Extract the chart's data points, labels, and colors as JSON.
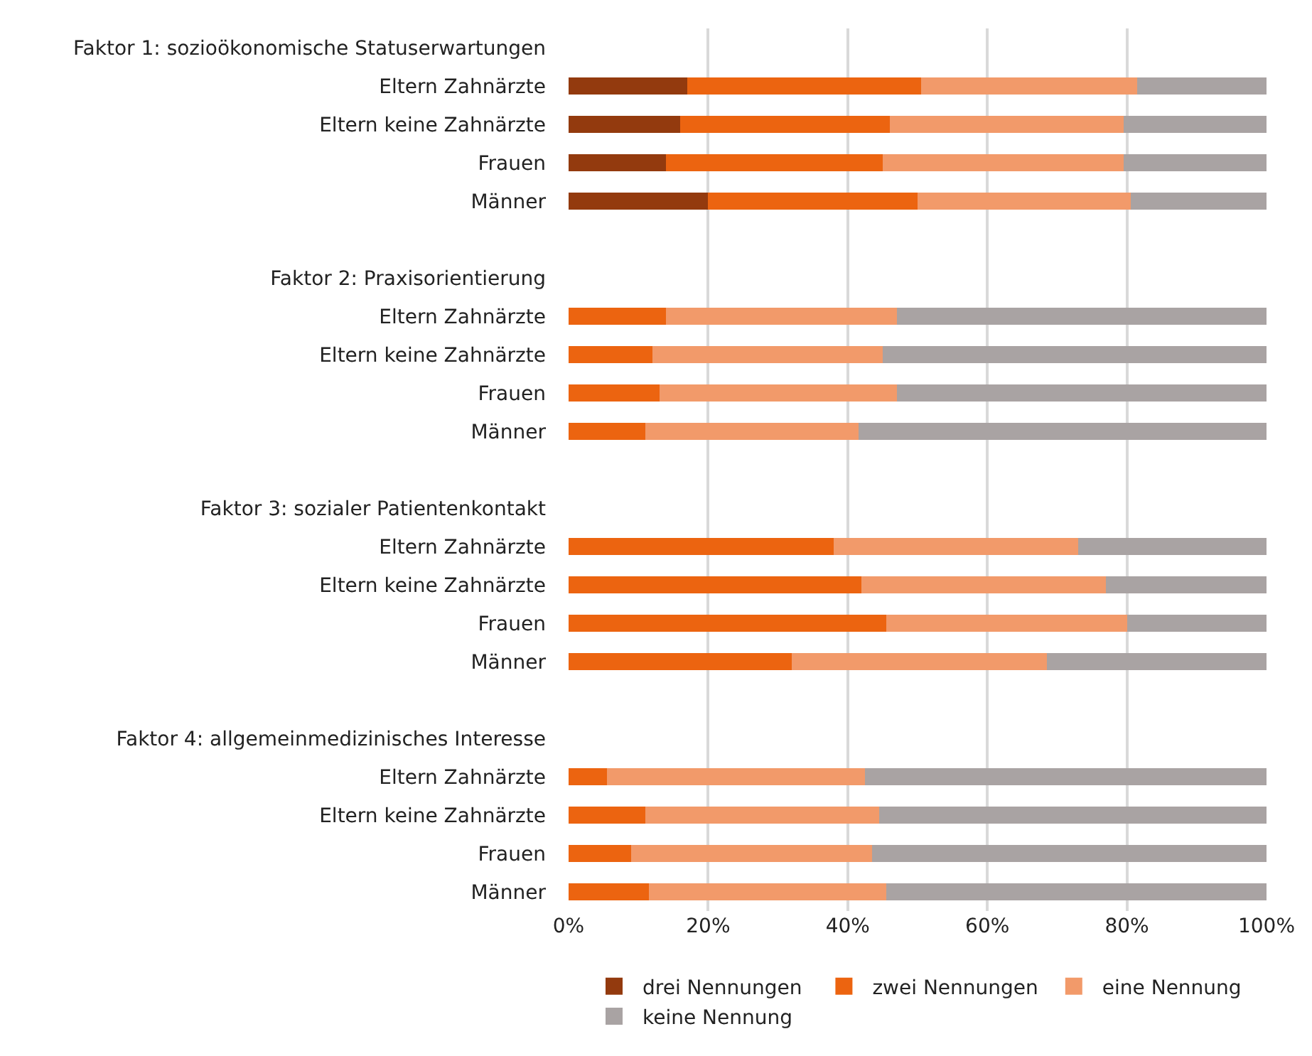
{
  "chart_data": {
    "type": "bar",
    "orientation": "horizontal",
    "stacked": true,
    "categories": [
      "Faktor 1: sozioökonomische Statuserwartungen",
      "Eltern Zahnärzte",
      "Eltern keine Zahnärzte",
      "Frauen",
      "Männer",
      null,
      "Faktor 2: Praxisorientierung",
      "Eltern Zahnärzte",
      "Eltern keine Zahnärzte",
      "Frauen",
      "Männer",
      null,
      "Faktor 3: sozialer Patientenkontakt",
      "Eltern Zahnärzte",
      "Eltern keine Zahnärzte",
      "Frauen",
      "Männer",
      null,
      "Faktor 4: allgemeinmedizinisches Interesse",
      "Eltern Zahnärzte",
      "Eltern keine Zahnärzte",
      "Frauen",
      "Männer"
    ],
    "series": [
      {
        "name": "drei Nennungen",
        "color": "#933a0e",
        "values": [
          null,
          17,
          16,
          14,
          20,
          null,
          null,
          null,
          null,
          null,
          null,
          null,
          null,
          null,
          null,
          null,
          null,
          null,
          null,
          null,
          null,
          null,
          null
        ]
      },
      {
        "name": "zwei Nennungen",
        "color": "#ec6410",
        "values": [
          null,
          33.5,
          30,
          31,
          30,
          null,
          null,
          14,
          12,
          13,
          11,
          null,
          null,
          38,
          42,
          45.5,
          32,
          null,
          null,
          5.5,
          11,
          9,
          11.5
        ]
      },
      {
        "name": "eine Nennung",
        "color": "#f29a6a",
        "values": [
          null,
          31,
          33.5,
          34.5,
          30.5,
          null,
          null,
          33,
          33,
          34,
          30.5,
          null,
          null,
          35,
          35,
          34.5,
          36.5,
          null,
          null,
          37,
          33.5,
          34.5,
          34
        ]
      },
      {
        "name": "keine Nennung",
        "color": "#a9a3a3",
        "values": [
          null,
          18.5,
          20.5,
          20.5,
          19.5,
          null,
          null,
          53,
          55,
          53,
          58.5,
          null,
          null,
          27,
          23,
          20,
          31.5,
          null,
          null,
          57.5,
          55.5,
          56.5,
          54.5
        ]
      }
    ],
    "xlim": [
      0,
      100
    ],
    "xticks": [
      {
        "value": 0,
        "label": "0%"
      },
      {
        "value": 20,
        "label": "20%"
      },
      {
        "value": 40,
        "label": "40%"
      },
      {
        "value": 60,
        "label": "60%"
      },
      {
        "value": 80,
        "label": "80%"
      },
      {
        "value": 100,
        "label": "100%"
      }
    ],
    "grid": "x",
    "legend": "bottom"
  }
}
